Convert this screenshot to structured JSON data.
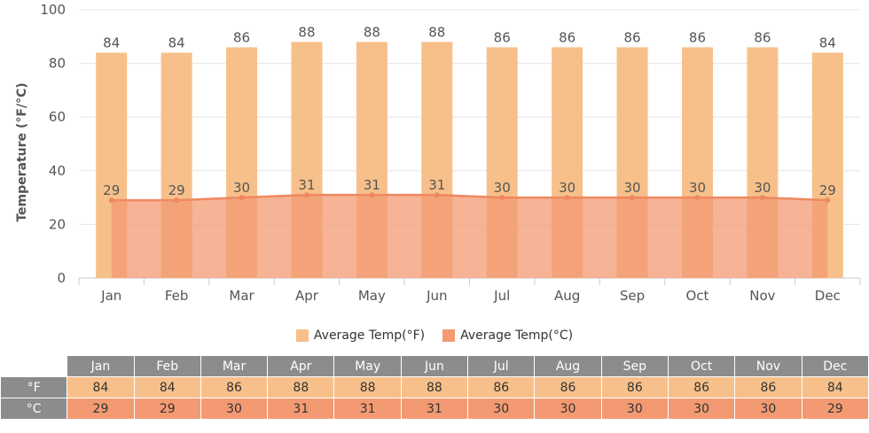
{
  "chart_data": {
    "type": "bar",
    "categories": [
      "Jan",
      "Feb",
      "Mar",
      "Apr",
      "May",
      "Jun",
      "Jul",
      "Aug",
      "Sep",
      "Oct",
      "Nov",
      "Dec"
    ],
    "series": [
      {
        "name": "Average Temp(°F)",
        "type": "bar",
        "color": "#f7c08a",
        "values": [
          84,
          84,
          86,
          88,
          88,
          88,
          86,
          86,
          86,
          86,
          86,
          84
        ]
      },
      {
        "name": "Average Temp(°C)",
        "type": "area",
        "color": "#f39a72",
        "values": [
          29,
          29,
          30,
          31,
          31,
          31,
          30,
          30,
          30,
          30,
          30,
          29
        ]
      }
    ],
    "title": "",
    "xlabel": "",
    "ylabel": "Temperature (°F/°C)",
    "ylim": [
      0,
      100
    ],
    "yticks": [
      0,
      20,
      40,
      60,
      80,
      100
    ],
    "grid": true,
    "legend_position": "bottom"
  },
  "legend": {
    "f_label": "Average Temp(°F)",
    "c_label": "Average Temp(°C)"
  },
  "table": {
    "row_f_label": "°F",
    "row_c_label": "°C"
  }
}
